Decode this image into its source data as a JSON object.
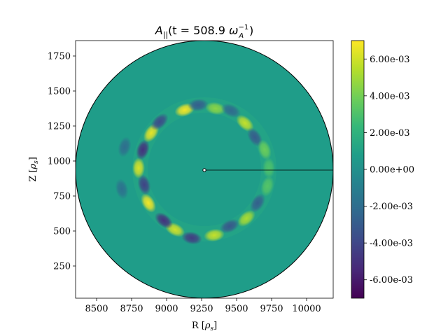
{
  "chart_data": {
    "type": "heatmap",
    "title": "A_||(t = 508.9 ω_A^-1)",
    "title_parts": {
      "symbol": "A",
      "subscript": "||",
      "open": "(t = 508.9 ",
      "omega": "ω",
      "omega_sub": "A",
      "omega_sup": "−1",
      "close": ")"
    },
    "xlabel": "R [ρ_s]",
    "xlabel_parts": {
      "prefix": "R [",
      "rho": "ρ",
      "sub": "s",
      "suffix": "]"
    },
    "ylabel": "Z [ρ_s]",
    "ylabel_parts": {
      "prefix": "Z [",
      "rho": "ρ",
      "sub": "s",
      "suffix": "]"
    },
    "xlim": [
      8350,
      10190
    ],
    "ylim": [
      20,
      1860
    ],
    "xticks": [
      8500,
      8750,
      9000,
      9250,
      9500,
      9750,
      10000
    ],
    "xtick_labels": [
      "8500",
      "8750",
      "9000",
      "9250",
      "9500",
      "9750",
      "10000"
    ],
    "yticks": [
      250,
      500,
      750,
      1000,
      1250,
      1500,
      1750
    ],
    "ytick_labels": [
      "250",
      "500",
      "750",
      "1000",
      "1250",
      "1500",
      "1750"
    ],
    "domain_circle": {
      "center": [
        9270,
        940
      ],
      "radius": 920
    },
    "ring": {
      "center": [
        9270,
        940
      ],
      "radius": 460
    },
    "marker": {
      "x": 9270,
      "y": 935,
      "line_to_x": 10190
    },
    "colorbar": {
      "min": -0.007,
      "max": 0.007,
      "ticks": [
        -0.006,
        -0.004,
        -0.002,
        0.0,
        0.002,
        0.004,
        0.006
      ],
      "tick_labels": [
        "-6.00e-03",
        "-4.00e-03",
        "-2.00e-03",
        "0.00e+00",
        "2.00e-03",
        "4.00e-03",
        "6.00e-03"
      ],
      "colormap": "viridis",
      "colors": [
        "#440154",
        "#482878",
        "#3e4989",
        "#31688e",
        "#26828e",
        "#1f9e89",
        "#35b779",
        "#6ece58",
        "#b5de2b",
        "#fde725"
      ]
    },
    "background_value": 0.0007,
    "blobs": [
      {
        "r": 9130,
        "z": 1365,
        "value": 0.0068
      },
      {
        "r": 9225,
        "z": 1400,
        "value": -0.0028
      },
      {
        "r": 9350,
        "z": 1375,
        "value": 0.0045
      },
      {
        "r": 9460,
        "z": 1360,
        "value": -0.0022
      },
      {
        "r": 9560,
        "z": 1270,
        "value": 0.0058
      },
      {
        "r": 9630,
        "z": 1170,
        "value": -0.003
      },
      {
        "r": 9700,
        "z": 1080,
        "value": 0.0038
      },
      {
        "r": 9730,
        "z": 950,
        "value": 0.003
      },
      {
        "r": 9720,
        "z": 820,
        "value": 0.0032
      },
      {
        "r": 9650,
        "z": 700,
        "value": -0.0028
      },
      {
        "r": 9570,
        "z": 590,
        "value": 0.0052
      },
      {
        "r": 9450,
        "z": 535,
        "value": -0.0032
      },
      {
        "r": 9340,
        "z": 470,
        "value": 0.0058
      },
      {
        "r": 9180,
        "z": 450,
        "value": -0.0045
      },
      {
        "r": 9060,
        "z": 510,
        "value": 0.006
      },
      {
        "r": 8980,
        "z": 575,
        "value": -0.005
      },
      {
        "r": 8870,
        "z": 700,
        "value": 0.0068
      },
      {
        "r": 8840,
        "z": 830,
        "value": -0.0042
      },
      {
        "r": 8800,
        "z": 950,
        "value": 0.0062
      },
      {
        "r": 8830,
        "z": 1080,
        "value": -0.005
      },
      {
        "r": 8890,
        "z": 1200,
        "value": 0.0065
      },
      {
        "r": 8950,
        "z": 1280,
        "value": -0.0038
      },
      {
        "r": 8700,
        "z": 1100,
        "value": -0.002
      },
      {
        "r": 8680,
        "z": 800,
        "value": -0.0018
      }
    ]
  }
}
